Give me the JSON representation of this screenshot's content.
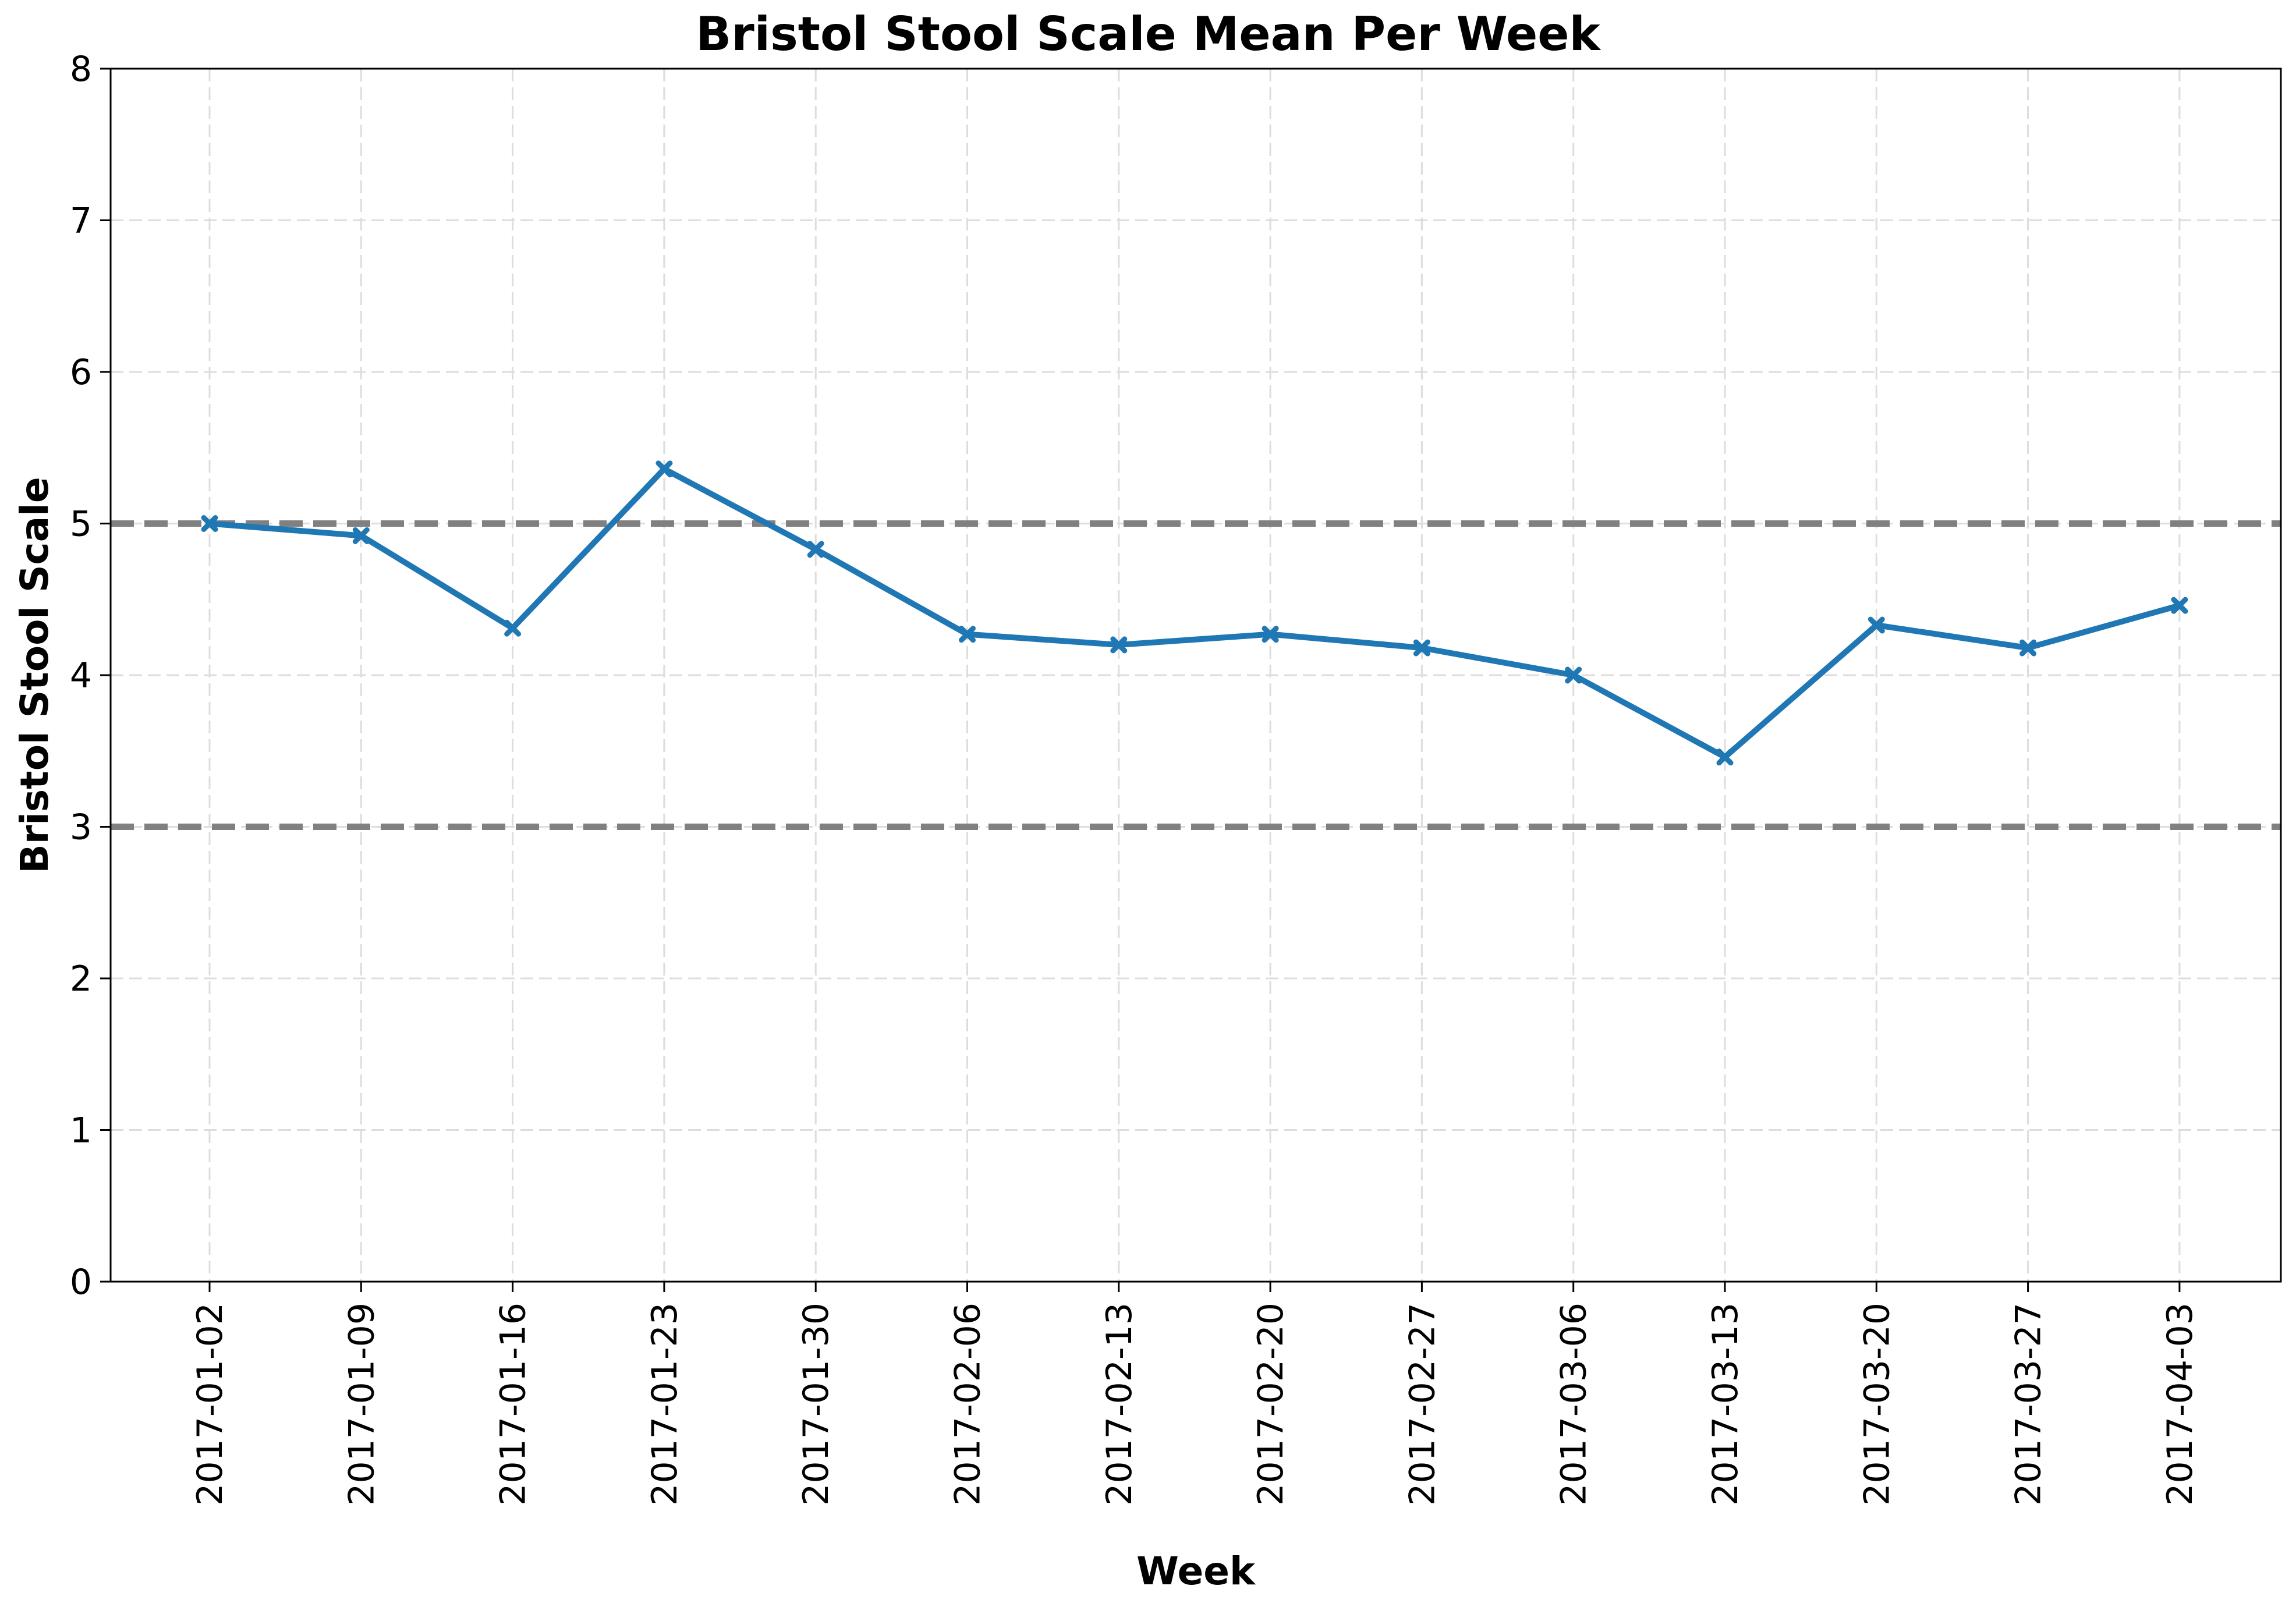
{
  "chart_data": {
    "type": "line",
    "title": "Bristol Stool Scale Mean Per Week",
    "xlabel": "Week",
    "ylabel": "Bristol Stool Scale",
    "ylim": [
      0,
      8
    ],
    "yticks": [
      0,
      1,
      2,
      3,
      4,
      5,
      6,
      7,
      8
    ],
    "grid": true,
    "categories": [
      "2017-01-02",
      "2017-01-09",
      "2017-01-16",
      "2017-01-23",
      "2017-01-30",
      "2017-02-06",
      "2017-02-13",
      "2017-02-20",
      "2017-02-27",
      "2017-03-06",
      "2017-03-13",
      "2017-03-20",
      "2017-03-27",
      "2017-04-03"
    ],
    "series": [
      {
        "values": [
          5.0,
          4.92,
          4.31,
          5.36,
          4.83,
          4.27,
          4.2,
          4.27,
          4.18,
          4.0,
          3.46,
          4.33,
          4.18,
          4.46
        ],
        "color": "#1f77b4",
        "marker": "x"
      }
    ],
    "reference_lines": [
      {
        "y": 5,
        "color": "#808080",
        "style": "dashed"
      },
      {
        "y": 3,
        "color": "#808080",
        "style": "dashed"
      }
    ]
  }
}
